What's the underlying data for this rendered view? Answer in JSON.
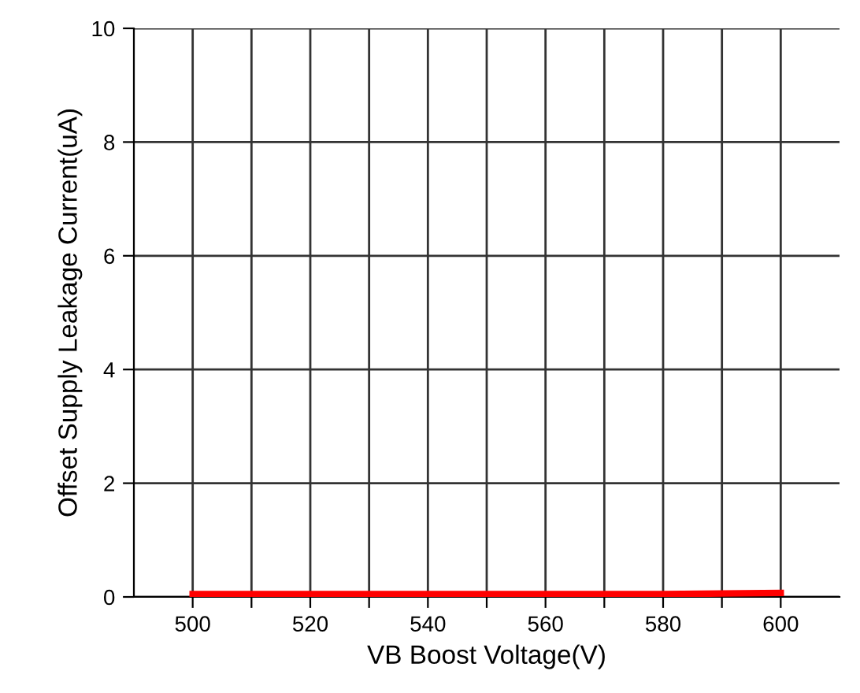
{
  "chart_data": {
    "type": "line",
    "xlabel": "VB Boost Voltage(V)",
    "ylabel": "Offset Supply Leakage Current(uA)",
    "x": [
      500,
      510,
      520,
      530,
      540,
      550,
      560,
      570,
      580,
      590,
      600
    ],
    "series": [
      {
        "color": "#ff0000",
        "values": [
          0.05,
          0.05,
          0.05,
          0.05,
          0.05,
          0.05,
          0.05,
          0.05,
          0.05,
          0.06,
          0.07
        ]
      }
    ],
    "xlim": [
      490,
      610
    ],
    "ylim": [
      0,
      10
    ],
    "xticks": [
      500,
      {
        "value": 510,
        "label": null
      },
      520,
      {
        "value": 530,
        "label": null
      },
      540,
      {
        "value": 550,
        "label": null
      },
      560,
      {
        "value": 570,
        "label": null
      },
      580,
      {
        "value": 590,
        "label": null
      },
      600
    ],
    "yticks": [
      0,
      2,
      4,
      6,
      8,
      10
    ],
    "grid": true,
    "marker": "none",
    "line_style": "solid"
  }
}
